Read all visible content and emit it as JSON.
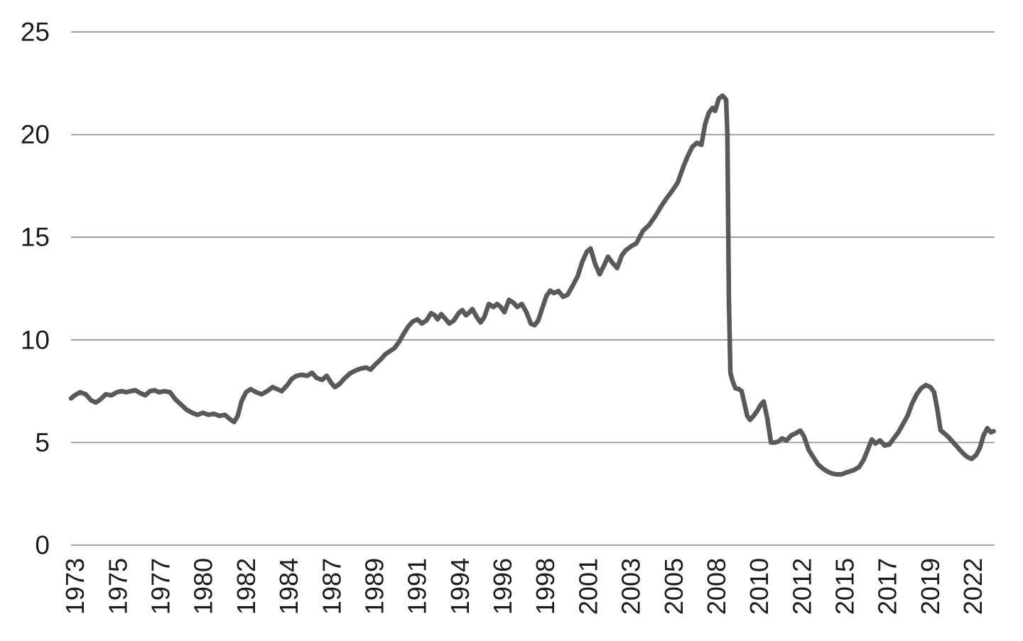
{
  "page": {
    "title": "",
    "background": "#ffffff"
  },
  "chart_data": {
    "type": "line",
    "title": "",
    "subtitle": "",
    "xlabel": "",
    "ylabel": "",
    "legend": "none",
    "grid": "horizontal-only",
    "ylim": [
      0,
      25
    ],
    "xlim": [
      1972.8,
      2023.2
    ],
    "y_ticks": [
      0,
      5,
      10,
      15,
      20,
      25
    ],
    "x_ticks": [
      {
        "label": "1973",
        "x": 1973.0
      },
      {
        "label": "1975",
        "x": 1975.333
      },
      {
        "label": "1977",
        "x": 1977.667
      },
      {
        "label": "1980",
        "x": 1980.0
      },
      {
        "label": "1982",
        "x": 1982.333
      },
      {
        "label": "1984",
        "x": 1984.667
      },
      {
        "label": "1987",
        "x": 1987.0
      },
      {
        "label": "1989",
        "x": 1989.333
      },
      {
        "label": "1991",
        "x": 1991.667
      },
      {
        "label": "1994",
        "x": 1994.0
      },
      {
        "label": "1996",
        "x": 1996.333
      },
      {
        "label": "1998",
        "x": 1998.667
      },
      {
        "label": "2001",
        "x": 2001.0
      },
      {
        "label": "2003",
        "x": 2003.333
      },
      {
        "label": "2005",
        "x": 2005.667
      },
      {
        "label": "2008",
        "x": 2008.0
      },
      {
        "label": "2010",
        "x": 2010.333
      },
      {
        "label": "2012",
        "x": 2012.667
      },
      {
        "label": "2015",
        "x": 2015.0
      },
      {
        "label": "2017",
        "x": 2017.333
      },
      {
        "label": "2019",
        "x": 2019.667
      },
      {
        "label": "2022",
        "x": 2022.0
      }
    ],
    "colors": {
      "grid": "#a08d90",
      "tick_label": "#1b1b1b",
      "line": "#59595d",
      "background": "#ffffff"
    },
    "series": [
      {
        "name": "value",
        "color": "#59595d",
        "points": [
          [
            1972.8,
            7.15
          ],
          [
            1973.0,
            7.3
          ],
          [
            1973.3,
            7.45
          ],
          [
            1973.6,
            7.35
          ],
          [
            1973.9,
            7.05
          ],
          [
            1974.15,
            6.95
          ],
          [
            1974.4,
            7.1
          ],
          [
            1974.7,
            7.35
          ],
          [
            1975.0,
            7.3
          ],
          [
            1975.3,
            7.45
          ],
          [
            1975.55,
            7.5
          ],
          [
            1975.8,
            7.45
          ],
          [
            1976.05,
            7.5
          ],
          [
            1976.3,
            7.55
          ],
          [
            1976.6,
            7.4
          ],
          [
            1976.85,
            7.3
          ],
          [
            1977.1,
            7.5
          ],
          [
            1977.35,
            7.55
          ],
          [
            1977.6,
            7.45
          ],
          [
            1977.9,
            7.5
          ],
          [
            1978.2,
            7.45
          ],
          [
            1978.5,
            7.1
          ],
          [
            1978.8,
            6.85
          ],
          [
            1979.1,
            6.6
          ],
          [
            1979.4,
            6.45
          ],
          [
            1979.7,
            6.35
          ],
          [
            1980.0,
            6.45
          ],
          [
            1980.3,
            6.35
          ],
          [
            1980.6,
            6.4
          ],
          [
            1980.9,
            6.3
          ],
          [
            1981.2,
            6.35
          ],
          [
            1981.45,
            6.15
          ],
          [
            1981.7,
            6.0
          ],
          [
            1981.9,
            6.3
          ],
          [
            1982.1,
            7.0
          ],
          [
            1982.35,
            7.45
          ],
          [
            1982.6,
            7.6
          ],
          [
            1982.9,
            7.45
          ],
          [
            1983.2,
            7.35
          ],
          [
            1983.5,
            7.5
          ],
          [
            1983.8,
            7.7
          ],
          [
            1984.05,
            7.6
          ],
          [
            1984.3,
            7.5
          ],
          [
            1984.6,
            7.8
          ],
          [
            1984.85,
            8.1
          ],
          [
            1985.1,
            8.25
          ],
          [
            1985.4,
            8.3
          ],
          [
            1985.7,
            8.25
          ],
          [
            1985.95,
            8.4
          ],
          [
            1986.2,
            8.15
          ],
          [
            1986.5,
            8.05
          ],
          [
            1986.75,
            8.25
          ],
          [
            1987.0,
            7.9
          ],
          [
            1987.2,
            7.7
          ],
          [
            1987.45,
            7.85
          ],
          [
            1987.7,
            8.1
          ],
          [
            1988.0,
            8.35
          ],
          [
            1988.3,
            8.5
          ],
          [
            1988.6,
            8.6
          ],
          [
            1988.9,
            8.65
          ],
          [
            1989.15,
            8.55
          ],
          [
            1989.4,
            8.8
          ],
          [
            1989.7,
            9.05
          ],
          [
            1989.95,
            9.3
          ],
          [
            1990.2,
            9.45
          ],
          [
            1990.45,
            9.6
          ],
          [
            1990.7,
            9.9
          ],
          [
            1990.95,
            10.3
          ],
          [
            1991.2,
            10.65
          ],
          [
            1991.45,
            10.9
          ],
          [
            1991.7,
            11.0
          ],
          [
            1991.95,
            10.8
          ],
          [
            1992.2,
            10.95
          ],
          [
            1992.45,
            11.3
          ],
          [
            1992.65,
            11.2
          ],
          [
            1992.8,
            11.0
          ],
          [
            1993.0,
            11.25
          ],
          [
            1993.2,
            11.05
          ],
          [
            1993.45,
            10.8
          ],
          [
            1993.7,
            10.95
          ],
          [
            1993.95,
            11.3
          ],
          [
            1994.15,
            11.45
          ],
          [
            1994.35,
            11.2
          ],
          [
            1994.55,
            11.35
          ],
          [
            1994.7,
            11.5
          ],
          [
            1994.95,
            11.1
          ],
          [
            1995.15,
            10.85
          ],
          [
            1995.35,
            11.1
          ],
          [
            1995.6,
            11.75
          ],
          [
            1995.85,
            11.6
          ],
          [
            1996.05,
            11.75
          ],
          [
            1996.25,
            11.6
          ],
          [
            1996.45,
            11.35
          ],
          [
            1996.7,
            11.95
          ],
          [
            1996.95,
            11.8
          ],
          [
            1997.15,
            11.6
          ],
          [
            1997.4,
            11.75
          ],
          [
            1997.65,
            11.35
          ],
          [
            1997.9,
            10.78
          ],
          [
            1998.1,
            10.72
          ],
          [
            1998.3,
            10.95
          ],
          [
            1998.5,
            11.5
          ],
          [
            1998.75,
            12.15
          ],
          [
            1998.95,
            12.4
          ],
          [
            1999.15,
            12.28
          ],
          [
            1999.4,
            12.38
          ],
          [
            1999.65,
            12.1
          ],
          [
            1999.9,
            12.2
          ],
          [
            2000.15,
            12.6
          ],
          [
            2000.45,
            13.1
          ],
          [
            2000.7,
            13.8
          ],
          [
            2000.95,
            14.3
          ],
          [
            2001.15,
            14.45
          ],
          [
            2001.4,
            13.7
          ],
          [
            2001.65,
            13.2
          ],
          [
            2001.9,
            13.65
          ],
          [
            2002.1,
            14.05
          ],
          [
            2002.35,
            13.75
          ],
          [
            2002.6,
            13.5
          ],
          [
            2002.85,
            14.1
          ],
          [
            2003.05,
            14.35
          ],
          [
            2003.35,
            14.55
          ],
          [
            2003.65,
            14.7
          ],
          [
            2004.0,
            15.3
          ],
          [
            2004.35,
            15.6
          ],
          [
            2004.7,
            16.05
          ],
          [
            2005.0,
            16.5
          ],
          [
            2005.3,
            16.9
          ],
          [
            2005.6,
            17.25
          ],
          [
            2005.9,
            17.65
          ],
          [
            2006.2,
            18.4
          ],
          [
            2006.45,
            18.95
          ],
          [
            2006.7,
            19.4
          ],
          [
            2006.95,
            19.6
          ],
          [
            2007.2,
            19.5
          ],
          [
            2007.4,
            20.5
          ],
          [
            2007.6,
            21.05
          ],
          [
            2007.8,
            21.3
          ],
          [
            2007.95,
            21.15
          ],
          [
            2008.15,
            21.75
          ],
          [
            2008.35,
            21.9
          ],
          [
            2008.55,
            21.7
          ],
          [
            2008.62,
            20.0
          ],
          [
            2008.7,
            12.0
          ],
          [
            2008.78,
            8.4
          ],
          [
            2008.9,
            8.0
          ],
          [
            2009.05,
            7.65
          ],
          [
            2009.25,
            7.6
          ],
          [
            2009.4,
            7.5
          ],
          [
            2009.55,
            6.9
          ],
          [
            2009.7,
            6.3
          ],
          [
            2009.85,
            6.1
          ],
          [
            2010.05,
            6.3
          ],
          [
            2010.25,
            6.55
          ],
          [
            2010.45,
            6.85
          ],
          [
            2010.6,
            7.0
          ],
          [
            2010.8,
            6.15
          ],
          [
            2011.0,
            5.0
          ],
          [
            2011.2,
            5.0
          ],
          [
            2011.4,
            5.05
          ],
          [
            2011.6,
            5.2
          ],
          [
            2011.85,
            5.1
          ],
          [
            2012.1,
            5.35
          ],
          [
            2012.35,
            5.45
          ],
          [
            2012.6,
            5.58
          ],
          [
            2012.8,
            5.3
          ],
          [
            2013.05,
            4.65
          ],
          [
            2013.3,
            4.3
          ],
          [
            2013.55,
            3.95
          ],
          [
            2013.8,
            3.75
          ],
          [
            2014.05,
            3.6
          ],
          [
            2014.3,
            3.5
          ],
          [
            2014.55,
            3.45
          ],
          [
            2014.85,
            3.45
          ],
          [
            2015.15,
            3.55
          ],
          [
            2015.5,
            3.65
          ],
          [
            2015.8,
            3.8
          ],
          [
            2016.05,
            4.15
          ],
          [
            2016.3,
            4.7
          ],
          [
            2016.5,
            5.15
          ],
          [
            2016.7,
            4.95
          ],
          [
            2016.95,
            5.1
          ],
          [
            2017.2,
            4.85
          ],
          [
            2017.45,
            4.9
          ],
          [
            2017.7,
            5.2
          ],
          [
            2017.95,
            5.5
          ],
          [
            2018.2,
            5.9
          ],
          [
            2018.45,
            6.3
          ],
          [
            2018.7,
            6.9
          ],
          [
            2018.95,
            7.35
          ],
          [
            2019.2,
            7.65
          ],
          [
            2019.45,
            7.8
          ],
          [
            2019.7,
            7.7
          ],
          [
            2019.9,
            7.45
          ],
          [
            2020.1,
            6.5
          ],
          [
            2020.25,
            5.6
          ],
          [
            2020.45,
            5.45
          ],
          [
            2020.7,
            5.25
          ],
          [
            2020.95,
            5.0
          ],
          [
            2021.2,
            4.75
          ],
          [
            2021.45,
            4.5
          ],
          [
            2021.7,
            4.3
          ],
          [
            2021.95,
            4.2
          ],
          [
            2022.2,
            4.4
          ],
          [
            2022.4,
            4.75
          ],
          [
            2022.6,
            5.35
          ],
          [
            2022.8,
            5.7
          ],
          [
            2023.0,
            5.5
          ],
          [
            2023.15,
            5.55
          ]
        ]
      }
    ]
  }
}
